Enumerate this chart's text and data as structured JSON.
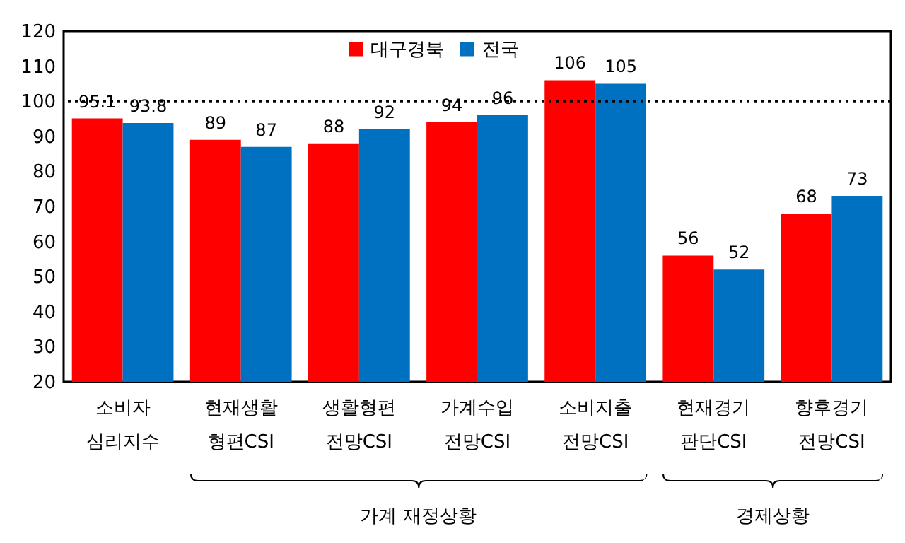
{
  "chart_data": {
    "type": "bar",
    "categories": [
      "소비자 심리지수",
      "현재생활 형편CSI",
      "생활형편 전망CSI",
      "가계수입 전망CSI",
      "소비지출 전망CSI",
      "현재경기 판단CSI",
      "향후경기 전망CSI"
    ],
    "series": [
      {
        "name": "대구경북",
        "color": "#ff0000",
        "values": [
          95.1,
          89,
          88,
          94,
          106,
          56,
          68
        ]
      },
      {
        "name": "전국",
        "color": "#0070c0",
        "values": [
          93.8,
          87,
          92,
          96,
          105,
          52,
          73
        ]
      }
    ],
    "ylim": [
      20,
      120
    ],
    "yticks": [
      20,
      30,
      40,
      50,
      60,
      70,
      80,
      90,
      100,
      110,
      120
    ],
    "ref_lines": [
      {
        "axis": "y",
        "value": 100,
        "color": "#000000",
        "line_style": "dotted"
      }
    ],
    "data_labels": true,
    "legend": "top",
    "grid": false,
    "annotations": [
      "가계 재정상황",
      "경제상황"
    ]
  }
}
